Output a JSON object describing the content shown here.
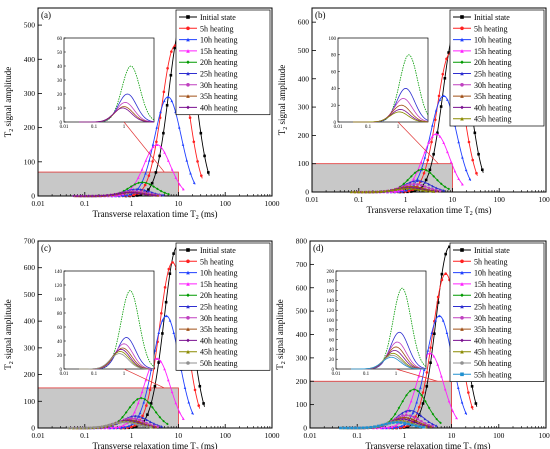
{
  "colors": {
    "series": [
      "#000000",
      "#ff2020",
      "#2040ff",
      "#ff20ff",
      "#009a00",
      "#2f2fd0",
      "#c040c0",
      "#a05018",
      "#7a1090",
      "#8a8a00",
      "#909090",
      "#2090d0"
    ],
    "inset_region_fill": "#c8c8c8",
    "inset_region_stroke": "#e03030"
  },
  "chart_data": [
    {
      "panel_label": "(a)",
      "type": "line",
      "xscale": "log",
      "xlabel": "Transverse relaxation time T2 (ms)",
      "ylabel": "T2 signal amplitude",
      "xlim": [
        0.01,
        1000
      ],
      "ylim": [
        0,
        550
      ],
      "xticks": [
        "0.01",
        "0.1",
        "1",
        "10",
        "100",
        "1000"
      ],
      "yticks": [
        0,
        100,
        200,
        300,
        400,
        500
      ],
      "legend_position": "top-right",
      "inset": {
        "xlim": [
          0.01,
          10
        ],
        "ylim": [
          0,
          60
        ],
        "yticks": [
          0,
          10,
          20,
          30,
          40,
          50,
          60
        ],
        "xticks": [
          "0.01",
          "0.1",
          "1"
        ]
      },
      "zoom_region": {
        "x": [
          0.01,
          10
        ],
        "y": [
          0,
          70
        ]
      },
      "series": [
        {
          "name": "Initial state",
          "peak_x": 12,
          "peak_y": 510
        },
        {
          "name": "5h heating",
          "peak_x": 8.5,
          "peak_y": 440
        },
        {
          "name": "10h heating",
          "peak_x": 6.0,
          "peak_y": 290
        },
        {
          "name": "15h heating",
          "peak_x": 3.5,
          "peak_y": 150
        },
        {
          "name": "20h heating",
          "peak_x": 1.7,
          "peak_y": 40
        },
        {
          "name": "25h heating",
          "peak_x": 1.3,
          "peak_y": 20
        },
        {
          "name": "30h heating",
          "peak_x": 1.1,
          "peak_y": 14
        },
        {
          "name": "35h heating",
          "peak_x": 1.0,
          "peak_y": 11
        },
        {
          "name": "40h heating",
          "peak_x": 0.9,
          "peak_y": 10
        }
      ]
    },
    {
      "panel_label": "(b)",
      "type": "line",
      "xscale": "log",
      "xlabel": "Transverse relaxation time T2 (ms)",
      "ylabel": "T2 signal amplitude",
      "xlim": [
        0.01,
        1000
      ],
      "ylim": [
        0,
        650
      ],
      "xticks": [
        "0.01",
        "0.1",
        "1",
        "10",
        "100",
        "1000"
      ],
      "yticks": [
        0,
        100,
        200,
        300,
        400,
        500,
        600
      ],
      "legend_position": "top-right",
      "inset": {
        "xlim": [
          0.01,
          10
        ],
        "ylim": [
          0,
          100
        ],
        "yticks": [
          0,
          20,
          40,
          60,
          80,
          100
        ],
        "xticks": [
          "0.01",
          "0.1",
          "1"
        ]
      },
      "zoom_region": {
        "x": [
          0.01,
          10
        ],
        "y": [
          0,
          100
        ]
      },
      "series": [
        {
          "name": "Initial state",
          "peak_x": 12,
          "peak_y": 580
        },
        {
          "name": "5h heating",
          "peak_x": 9,
          "peak_y": 490
        },
        {
          "name": "10h heating",
          "peak_x": 6.5,
          "peak_y": 340
        },
        {
          "name": "15h heating",
          "peak_x": 4.5,
          "peak_y": 205
        },
        {
          "name": "20h heating",
          "peak_x": 2.3,
          "peak_y": 80
        },
        {
          "name": "25h heating",
          "peak_x": 1.8,
          "peak_y": 40
        },
        {
          "name": "30h heating",
          "peak_x": 1.5,
          "peak_y": 28
        },
        {
          "name": "35h heating",
          "peak_x": 1.3,
          "peak_y": 20
        },
        {
          "name": "40h heating",
          "peak_x": 1.2,
          "peak_y": 15
        },
        {
          "name": "45h heating",
          "peak_x": 1.1,
          "peak_y": 12
        }
      ]
    },
    {
      "panel_label": "(c)",
      "type": "line",
      "xscale": "log",
      "xlabel": "Transverse relaxation time T2 (ms)",
      "ylabel": "T2 signal amplitude",
      "xlim": [
        0.01,
        1000
      ],
      "ylim": [
        0,
        700
      ],
      "xticks": [
        "0.01",
        "0.1",
        "1",
        "10",
        "100",
        "1000"
      ],
      "yticks": [
        0,
        100,
        200,
        300,
        400,
        500,
        600,
        700
      ],
      "legend_position": "top-right",
      "inset": {
        "xlim": [
          0.01,
          10
        ],
        "ylim": [
          0,
          140
        ],
        "yticks": [
          0,
          20,
          40,
          60,
          80,
          100,
          120,
          140
        ],
        "xticks": [
          "0.01",
          "0.1",
          "1"
        ]
      },
      "zoom_region": {
        "x": [
          0.01,
          10
        ],
        "y": [
          0,
          150
        ]
      },
      "series": [
        {
          "name": "Initial state",
          "peak_x": 9.5,
          "peak_y": 680
        },
        {
          "name": "5h heating",
          "peak_x": 7.5,
          "peak_y": 620
        },
        {
          "name": "10h heating",
          "peak_x": 5.5,
          "peak_y": 420
        },
        {
          "name": "15h heating",
          "peak_x": 3.5,
          "peak_y": 260
        },
        {
          "name": "20h heating",
          "peak_x": 1.6,
          "peak_y": 112
        },
        {
          "name": "25h heating",
          "peak_x": 1.2,
          "peak_y": 45
        },
        {
          "name": "30h heating",
          "peak_x": 1.0,
          "peak_y": 36
        },
        {
          "name": "35h heating",
          "peak_x": 0.9,
          "peak_y": 30
        },
        {
          "name": "40h heating",
          "peak_x": 0.8,
          "peak_y": 28
        },
        {
          "name": "45h heating",
          "peak_x": 0.75,
          "peak_y": 25
        },
        {
          "name": "50h heating",
          "peak_x": 0.7,
          "peak_y": 22
        }
      ]
    },
    {
      "panel_label": "(d)",
      "type": "line",
      "xscale": "log",
      "xlabel": "Transverse relaxation time T2 (ms)",
      "ylabel": "T2 signal amplitude",
      "xlim": [
        0.01,
        1000
      ],
      "ylim": [
        0,
        800
      ],
      "xticks": [
        "0.01",
        "0.1",
        "1",
        "10",
        "100",
        "1000"
      ],
      "yticks": [
        0,
        100,
        200,
        300,
        400,
        500,
        600,
        700,
        800
      ],
      "legend_position": "top-right",
      "inset": {
        "xlim": [
          0.01,
          10
        ],
        "ylim": [
          0,
          200
        ],
        "yticks": [
          0,
          20,
          40,
          60,
          80,
          100,
          120,
          140,
          160,
          180,
          200
        ],
        "xticks": [
          "0.01",
          "0.1",
          "1"
        ]
      },
      "zoom_region": {
        "x": [
          0.01,
          10
        ],
        "y": [
          0,
          200
        ]
      },
      "series": [
        {
          "name": "Initial state",
          "peak_x": 9,
          "peak_y": 775
        },
        {
          "name": "5h heating",
          "peak_x": 7.5,
          "peak_y": 660
        },
        {
          "name": "10h heating",
          "peak_x": 5.5,
          "peak_y": 480
        },
        {
          "name": "15h heating",
          "peak_x": 3.5,
          "peak_y": 320
        },
        {
          "name": "20h heating",
          "peak_x": 1.6,
          "peak_y": 165
        },
        {
          "name": "25h heating",
          "peak_x": 1.3,
          "peak_y": 75
        },
        {
          "name": "30h heating",
          "peak_x": 1.1,
          "peak_y": 55
        },
        {
          "name": "35h heating",
          "peak_x": 1.0,
          "peak_y": 45
        },
        {
          "name": "40h heating",
          "peak_x": 0.9,
          "peak_y": 38
        },
        {
          "name": "45h heating",
          "peak_x": 0.8,
          "peak_y": 32
        },
        {
          "name": "50h heating",
          "peak_x": 0.75,
          "peak_y": 28
        },
        {
          "name": "55h heating",
          "peak_x": 0.7,
          "peak_y": 24
        }
      ]
    }
  ]
}
